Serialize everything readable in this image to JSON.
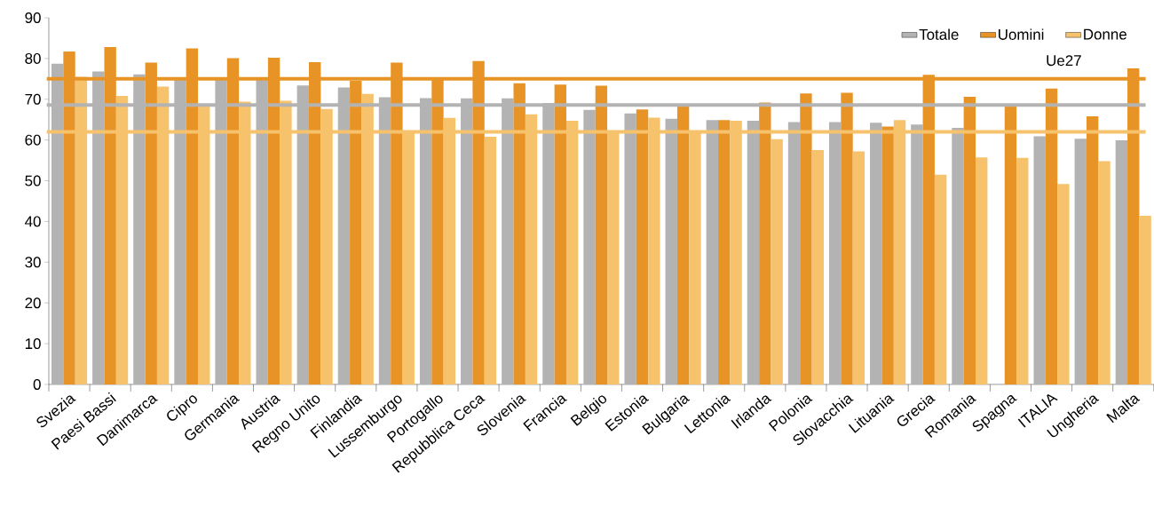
{
  "chart_data": {
    "type": "bar",
    "categories": [
      "Svezia",
      "Paesi Bassi",
      "Danimarca",
      "Cipro",
      "Germania",
      "Austria",
      "Regno Unito",
      "Finlandia",
      "Lussemburgo",
      "Portogallo",
      "Repubblica Ceca",
      "Slovenia",
      "Francia",
      "Belgio",
      "Estonia",
      "Bulgaria",
      "Lettonia",
      "Irlanda",
      "Polonia",
      "Slovacchia",
      "Lituania",
      "Grecia",
      "Romania",
      "Spagna",
      "ITALIA",
      "Ungheria",
      "Malta"
    ],
    "series": [
      {
        "name": "Totale",
        "color": "#b3b3b3",
        "values": [
          78.7,
          76.8,
          76.1,
          75.0,
          74.8,
          75.0,
          73.4,
          72.9,
          70.5,
          70.3,
          70.2,
          70.2,
          69.1,
          67.4,
          66.5,
          65.2,
          64.9,
          64.7,
          64.4,
          64.4,
          64.2,
          63.8,
          63.0,
          null,
          60.9,
          60.3,
          59.9
        ]
      },
      {
        "name": "Uomini",
        "color": "#e89326",
        "values": [
          81.7,
          82.8,
          79.0,
          82.5,
          80.1,
          80.2,
          79.1,
          74.5,
          79.0,
          75.0,
          79.4,
          73.9,
          73.6,
          73.3,
          67.5,
          68.5,
          64.9,
          69.2,
          71.4,
          71.6,
          63.3,
          76.0,
          70.6,
          68.2,
          72.6,
          65.8,
          77.6
        ]
      },
      {
        "name": "Donne",
        "color": "#f7c26c",
        "values": [
          75.5,
          70.8,
          73.1,
          68.5,
          69.4,
          69.6,
          67.6,
          71.3,
          62.3,
          65.4,
          60.8,
          66.3,
          64.7,
          62.3,
          65.5,
          62.3,
          64.7,
          60.2,
          57.5,
          57.2,
          64.9,
          51.5,
          55.7,
          55.6,
          49.2,
          54.8,
          41.4
        ]
      }
    ],
    "ylim": [
      0,
      90
    ],
    "yticks": [
      0,
      10,
      20,
      30,
      40,
      50,
      60,
      70,
      80,
      90
    ],
    "ref_lines": [
      {
        "axis": "y",
        "value": 75.0,
        "label": "Ue27",
        "color": "#e89326"
      },
      {
        "axis": "y",
        "value": 68.6,
        "color": "#b3b3b3"
      },
      {
        "axis": "y",
        "value": 62.0,
        "color": "#f7c26c"
      }
    ],
    "grid": false,
    "legend": "top"
  }
}
